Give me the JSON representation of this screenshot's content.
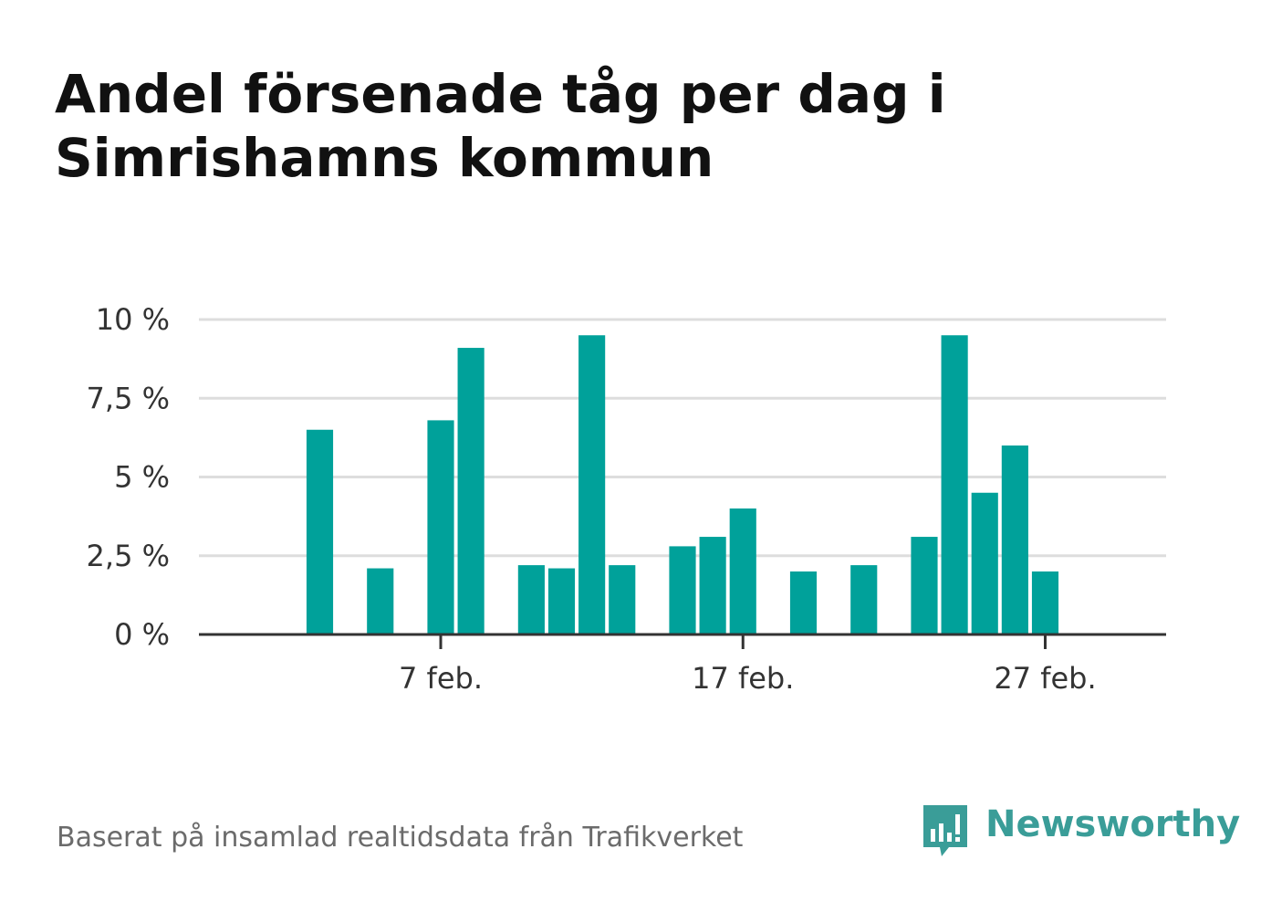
{
  "title": "Andel försenade tåg per dag i Simrishamns kommun",
  "footer": "Baserat på insamlad realtidsdata från Trafikverket",
  "brand": {
    "name": "Newsworthy",
    "icon": "bar-chart-speech-bubble-icon",
    "color": "#3a9d98"
  },
  "colors": {
    "bar": "#00a19a",
    "grid": "#dddddd",
    "axis": "#333333",
    "text": "#333333"
  },
  "chart_data": {
    "type": "bar",
    "title": "Andel försenade tåg per dag i Simrishamns kommun",
    "xlabel": "",
    "ylabel": "",
    "x_axis_type": "date",
    "x_tick_labels": [
      {
        "date": "2024-02-07",
        "label": "7 feb."
      },
      {
        "date": "2024-02-17",
        "label": "17 feb."
      },
      {
        "date": "2024-02-27",
        "label": "27 feb."
      }
    ],
    "xlim": [
      "2024-01-30",
      "2024-03-02"
    ],
    "y_ticks": [
      {
        "value": 0,
        "label": "0 %"
      },
      {
        "value": 2.5,
        "label": "2,5 %"
      },
      {
        "value": 5,
        "label": "5 %"
      },
      {
        "value": 7.5,
        "label": "7,5 %"
      },
      {
        "value": 10,
        "label": "10 %"
      }
    ],
    "ylim": [
      0,
      10
    ],
    "unit": "%",
    "grid": true,
    "legend": "none",
    "x": [
      "2024-02-03",
      "2024-02-05",
      "2024-02-07",
      "2024-02-08",
      "2024-02-10",
      "2024-02-11",
      "2024-02-12",
      "2024-02-13",
      "2024-02-15",
      "2024-02-16",
      "2024-02-17",
      "2024-02-19",
      "2024-02-21",
      "2024-02-23",
      "2024-02-24",
      "2024-02-25",
      "2024-02-26",
      "2024-02-27"
    ],
    "values": [
      6.5,
      2.1,
      6.8,
      9.1,
      2.2,
      2.1,
      9.5,
      2.2,
      2.8,
      3.1,
      4.0,
      2.0,
      2.2,
      3.1,
      9.5,
      4.5,
      6.0,
      2.0
    ]
  }
}
